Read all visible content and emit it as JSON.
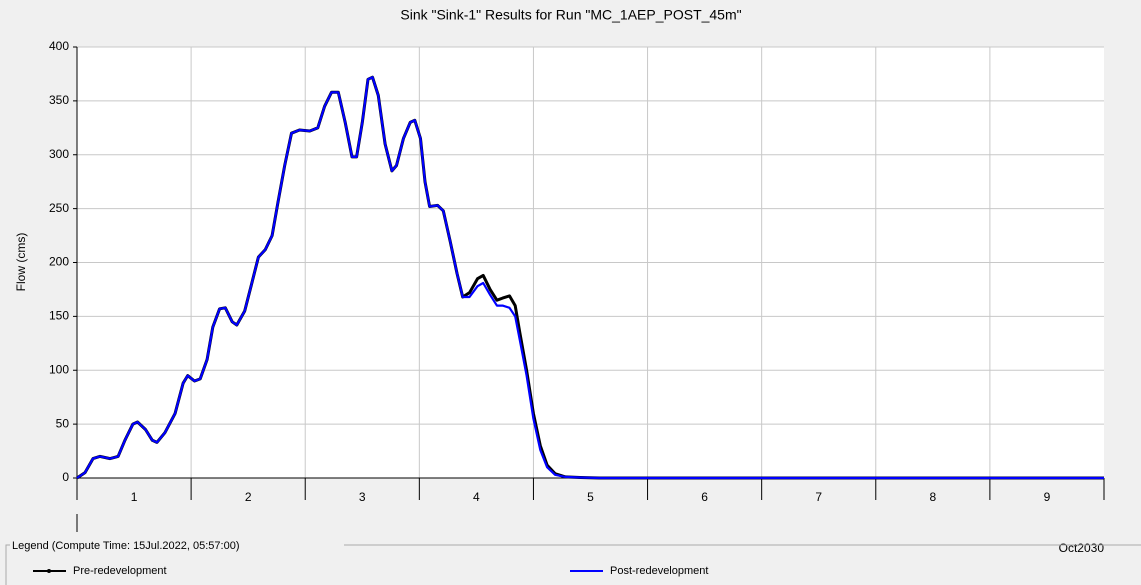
{
  "chart_data": {
    "type": "line",
    "title": "Sink \"Sink-1\" Results for Run \"MC_1AEP_POST_45m\"",
    "y_axis_label": "Flow (cms)",
    "x_axis_label": "Oct2030",
    "legend_title": "Legend (Compute Time: 15Jul.2022, 05:57:00)",
    "x": [
      1.0,
      1.07,
      1.14,
      1.2,
      1.29,
      1.36,
      1.42,
      1.49,
      1.53,
      1.6,
      1.66,
      1.7,
      1.77,
      1.86,
      1.93,
      1.97,
      2.03,
      2.08,
      2.14,
      2.19,
      2.25,
      2.3,
      2.36,
      2.4,
      2.47,
      2.53,
      2.59,
      2.65,
      2.71,
      2.76,
      2.82,
      2.88,
      2.95,
      3.04,
      3.11,
      3.17,
      3.23,
      3.29,
      3.35,
      3.41,
      3.45,
      3.5,
      3.55,
      3.59,
      3.64,
      3.7,
      3.76,
      3.8,
      3.86,
      3.92,
      3.96,
      4.01,
      4.05,
      4.09,
      4.16,
      4.21,
      4.27,
      4.33,
      4.38,
      4.44,
      4.51,
      4.56,
      4.62,
      4.68,
      4.73,
      4.79,
      4.84,
      4.88,
      4.94,
      5.0,
      5.06,
      5.12,
      5.19,
      5.28,
      5.41,
      5.58,
      10.0
    ],
    "series": [
      {
        "name": "Pre-redevelopment",
        "color": "#000000",
        "values": [
          0,
          5,
          18,
          20,
          18,
          20,
          35,
          50,
          52,
          45,
          35,
          33,
          42,
          60,
          88,
          95,
          90,
          92,
          110,
          140,
          157,
          158,
          145,
          142,
          155,
          180,
          205,
          212,
          225,
          255,
          290,
          320,
          323,
          322,
          325,
          345,
          358,
          358,
          330,
          298,
          298,
          330,
          370,
          372,
          355,
          310,
          285,
          290,
          315,
          330,
          332,
          315,
          275,
          252,
          253,
          248,
          220,
          190,
          168,
          172,
          185,
          188,
          175,
          165,
          167,
          169,
          160,
          135,
          100,
          60,
          30,
          12,
          4,
          1,
          0.5,
          0,
          0
        ]
      },
      {
        "name": "Post-redevelopment",
        "color": "#0000ff",
        "values": [
          0,
          5,
          18,
          20,
          18,
          20,
          35,
          50,
          52,
          45,
          35,
          33,
          42,
          60,
          88,
          95,
          90,
          92,
          110,
          140,
          157,
          158,
          145,
          142,
          155,
          180,
          205,
          212,
          225,
          255,
          290,
          320,
          323,
          322,
          325,
          345,
          358,
          358,
          330,
          298,
          298,
          330,
          370,
          372,
          355,
          310,
          285,
          290,
          315,
          330,
          332,
          315,
          275,
          252,
          253,
          248,
          220,
          190,
          168,
          168,
          178,
          181,
          170,
          160,
          160,
          158,
          150,
          128,
          95,
          55,
          26,
          10,
          3,
          1,
          0.5,
          0,
          0
        ]
      }
    ],
    "xlim": [
      1,
      10
    ],
    "xticks": [
      1,
      2,
      3,
      4,
      5,
      6,
      7,
      8,
      9
    ],
    "ylim": [
      0,
      400
    ],
    "yticks": [
      0,
      50,
      100,
      150,
      200,
      250,
      300,
      350,
      400
    ],
    "grid": true
  }
}
